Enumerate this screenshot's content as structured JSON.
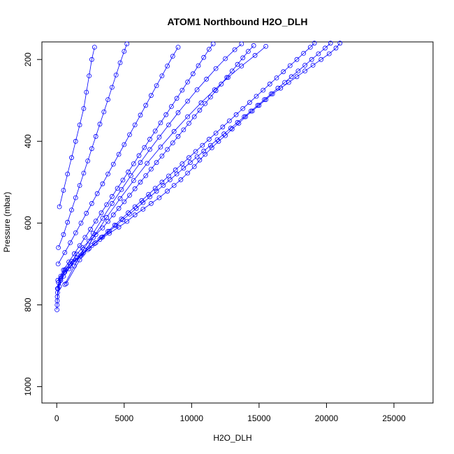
{
  "chart_data": {
    "type": "scatter",
    "title": "ATOM1 Northbound H2O_DLH",
    "xlabel": "H2O_DLH",
    "ylabel": "Pressure (mbar)",
    "xlim": [
      -1100,
      27900
    ],
    "ylim": [
      1040,
      157
    ],
    "y_reversed": true,
    "x_ticks": [
      0,
      5000,
      10000,
      15000,
      20000,
      25000
    ],
    "y_ticks": [
      200,
      400,
      600,
      800,
      1000
    ],
    "grid": false,
    "legend": "none",
    "marker": "open-circle",
    "connected": true,
    "color": "#0000ff",
    "series": [
      {
        "values": [
          [
            20,
            812
          ],
          [
            40,
            790
          ],
          [
            60,
            770
          ],
          [
            120,
            745
          ],
          [
            300,
            730
          ],
          [
            600,
            715
          ],
          [
            1000,
            700
          ],
          [
            1500,
            685
          ],
          [
            2000,
            672
          ],
          [
            2600,
            655
          ],
          [
            3200,
            640
          ],
          [
            3900,
            625
          ],
          [
            4600,
            610
          ],
          [
            5200,
            596
          ],
          [
            5800,
            580
          ],
          [
            6400,
            566
          ],
          [
            7000,
            552
          ],
          [
            7600,
            538
          ],
          [
            8200,
            522
          ],
          [
            8700,
            508
          ],
          [
            9200,
            494
          ],
          [
            9700,
            478
          ],
          [
            10200,
            462
          ],
          [
            10600,
            446
          ],
          [
            11000,
            432
          ],
          [
            11500,
            416
          ],
          [
            12000,
            400
          ],
          [
            12500,
            386
          ],
          [
            13000,
            370
          ],
          [
            13500,
            356
          ],
          [
            14000,
            340
          ],
          [
            14500,
            326
          ],
          [
            15000,
            312
          ],
          [
            15500,
            298
          ],
          [
            16000,
            284
          ],
          [
            16600,
            270
          ],
          [
            17200,
            256
          ],
          [
            17800,
            242
          ],
          [
            18400,
            228
          ],
          [
            19000,
            214
          ],
          [
            19600,
            200
          ],
          [
            20200,
            186
          ],
          [
            20700,
            172
          ],
          [
            21000,
            160
          ]
        ]
      },
      {
        "values": [
          [
            30,
            800
          ],
          [
            100,
            760
          ],
          [
            300,
            740
          ],
          [
            600,
            720
          ],
          [
            1000,
            705
          ],
          [
            1400,
            690
          ],
          [
            1900,
            676
          ],
          [
            2400,
            662
          ],
          [
            2900,
            648
          ],
          [
            3400,
            634
          ],
          [
            3900,
            620
          ],
          [
            4400,
            606
          ],
          [
            4900,
            592
          ],
          [
            5400,
            578
          ],
          [
            5900,
            564
          ],
          [
            6400,
            550
          ],
          [
            6900,
            536
          ],
          [
            7400,
            522
          ],
          [
            7900,
            508
          ],
          [
            8400,
            494
          ],
          [
            8900,
            480
          ],
          [
            9400,
            466
          ],
          [
            9900,
            452
          ],
          [
            10400,
            438
          ],
          [
            10900,
            424
          ],
          [
            11400,
            410
          ],
          [
            11900,
            396
          ],
          [
            12400,
            382
          ],
          [
            12900,
            368
          ],
          [
            13400,
            354
          ],
          [
            13900,
            340
          ],
          [
            14400,
            326
          ],
          [
            14900,
            312
          ],
          [
            15400,
            298
          ],
          [
            15900,
            284
          ],
          [
            16400,
            270
          ],
          [
            16900,
            256
          ],
          [
            17400,
            242
          ],
          [
            17900,
            228
          ],
          [
            18400,
            214
          ],
          [
            18900,
            200
          ],
          [
            19400,
            186
          ],
          [
            19900,
            172
          ],
          [
            20300,
            160
          ]
        ]
      },
      {
        "values": [
          [
            40,
            780
          ],
          [
            200,
            755
          ],
          [
            500,
            730
          ],
          [
            900,
            712
          ],
          [
            1300,
            695
          ],
          [
            1800,
            680
          ],
          [
            2300,
            665
          ],
          [
            2800,
            650
          ],
          [
            3300,
            635
          ],
          [
            3800,
            620
          ],
          [
            4300,
            605
          ],
          [
            4800,
            590
          ],
          [
            5300,
            575
          ],
          [
            5800,
            560
          ],
          [
            6300,
            545
          ],
          [
            6800,
            530
          ],
          [
            7300,
            515
          ],
          [
            7800,
            500
          ],
          [
            8300,
            485
          ],
          [
            8800,
            470
          ],
          [
            9300,
            455
          ],
          [
            9800,
            440
          ],
          [
            10300,
            425
          ],
          [
            10800,
            410
          ],
          [
            11300,
            395
          ],
          [
            11800,
            380
          ],
          [
            12300,
            365
          ],
          [
            12800,
            350
          ],
          [
            13300,
            335
          ],
          [
            13800,
            320
          ],
          [
            14300,
            305
          ],
          [
            14800,
            290
          ],
          [
            15300,
            275
          ],
          [
            15800,
            260
          ],
          [
            16300,
            245
          ],
          [
            16800,
            230
          ],
          [
            17300,
            215
          ],
          [
            17800,
            200
          ],
          [
            18300,
            185
          ],
          [
            18800,
            170
          ],
          [
            19100,
            160
          ]
        ]
      },
      {
        "values": [
          [
            60,
            760
          ],
          [
            300,
            735
          ],
          [
            700,
            712
          ],
          [
            1100,
            694
          ],
          [
            1500,
            676
          ],
          [
            1900,
            660
          ],
          [
            2400,
            644
          ],
          [
            2900,
            628
          ],
          [
            3400,
            612
          ],
          [
            3800,
            596
          ],
          [
            4200,
            580
          ],
          [
            4600,
            564
          ],
          [
            5000,
            548
          ],
          [
            5400,
            532
          ],
          [
            5800,
            516
          ],
          [
            6200,
            500
          ],
          [
            6600,
            484
          ],
          [
            7000,
            468
          ],
          [
            7400,
            452
          ],
          [
            7800,
            436
          ],
          [
            8200,
            420
          ],
          [
            8600,
            404
          ],
          [
            9000,
            388
          ],
          [
            9400,
            372
          ],
          [
            9800,
            356
          ],
          [
            10200,
            340
          ],
          [
            10600,
            324
          ],
          [
            11000,
            308
          ],
          [
            11400,
            292
          ],
          [
            11800,
            276
          ],
          [
            12200,
            260
          ],
          [
            12600,
            244
          ],
          [
            13000,
            228
          ],
          [
            13400,
            212
          ],
          [
            13800,
            196
          ],
          [
            14200,
            180
          ],
          [
            14600,
            166
          ]
        ]
      },
      {
        "values": [
          [
            80,
            740
          ],
          [
            500,
            715
          ],
          [
            900,
            695
          ],
          [
            1300,
            675
          ],
          [
            1700,
            655
          ],
          [
            2100,
            635
          ],
          [
            2500,
            615
          ],
          [
            2900,
            595
          ],
          [
            3300,
            575
          ],
          [
            3700,
            555
          ],
          [
            4100,
            535
          ],
          [
            4500,
            515
          ],
          [
            4900,
            495
          ],
          [
            5300,
            475
          ],
          [
            5700,
            455
          ],
          [
            6100,
            435
          ],
          [
            6500,
            415
          ],
          [
            6900,
            395
          ],
          [
            7300,
            375
          ],
          [
            7700,
            355
          ],
          [
            8100,
            335
          ],
          [
            8500,
            315
          ],
          [
            8900,
            295
          ],
          [
            9300,
            275
          ],
          [
            9700,
            255
          ],
          [
            10100,
            235
          ],
          [
            10500,
            215
          ],
          [
            10900,
            195
          ],
          [
            11300,
            175
          ],
          [
            11600,
            162
          ]
        ]
      },
      {
        "values": [
          [
            100,
            700
          ],
          [
            600,
            672
          ],
          [
            1000,
            648
          ],
          [
            1400,
            624
          ],
          [
            1800,
            600
          ],
          [
            2200,
            576
          ],
          [
            2600,
            552
          ],
          [
            3000,
            528
          ],
          [
            3400,
            504
          ],
          [
            3800,
            480
          ],
          [
            4200,
            456
          ],
          [
            4600,
            432
          ],
          [
            5000,
            408
          ],
          [
            5400,
            384
          ],
          [
            5800,
            360
          ],
          [
            6200,
            336
          ],
          [
            6600,
            312
          ],
          [
            7000,
            288
          ],
          [
            7400,
            264
          ],
          [
            7800,
            240
          ],
          [
            8200,
            216
          ],
          [
            8600,
            192
          ],
          [
            9000,
            170
          ]
        ]
      },
      {
        "values": [
          [
            120,
            660
          ],
          [
            500,
            628
          ],
          [
            800,
            598
          ],
          [
            1100,
            568
          ],
          [
            1400,
            538
          ],
          [
            1700,
            508
          ],
          [
            2000,
            478
          ],
          [
            2300,
            448
          ],
          [
            2600,
            418
          ],
          [
            2900,
            388
          ],
          [
            3200,
            358
          ],
          [
            3500,
            328
          ],
          [
            3800,
            298
          ],
          [
            4100,
            268
          ],
          [
            4400,
            238
          ],
          [
            4700,
            208
          ],
          [
            5000,
            180
          ],
          [
            5200,
            162
          ]
        ]
      },
      {
        "values": [
          [
            200,
            560
          ],
          [
            500,
            520
          ],
          [
            800,
            480
          ],
          [
            1100,
            440
          ],
          [
            1400,
            400
          ],
          [
            1700,
            360
          ],
          [
            2000,
            320
          ],
          [
            2200,
            280
          ],
          [
            2400,
            240
          ],
          [
            2600,
            200
          ],
          [
            2800,
            170
          ]
        ]
      },
      {
        "values": [
          [
            600,
            750
          ],
          [
            1300,
            705
          ],
          [
            2000,
            665
          ],
          [
            2700,
            625
          ],
          [
            3400,
            588
          ],
          [
            4100,
            552
          ],
          [
            4800,
            518
          ],
          [
            5500,
            484
          ],
          [
            6200,
            452
          ],
          [
            6900,
            420
          ],
          [
            7600,
            390
          ],
          [
            8300,
            360
          ],
          [
            9000,
            330
          ],
          [
            9700,
            302
          ],
          [
            10400,
            274
          ],
          [
            11100,
            248
          ],
          [
            11800,
            222
          ],
          [
            12500,
            198
          ],
          [
            13200,
            176
          ],
          [
            13700,
            162
          ]
        ]
      },
      {
        "values": [
          [
            700,
            748
          ],
          [
            1700,
            690
          ],
          [
            2700,
            636
          ],
          [
            3700,
            586
          ],
          [
            4700,
            540
          ],
          [
            5700,
            496
          ],
          [
            6700,
            454
          ],
          [
            7700,
            414
          ],
          [
            8700,
            376
          ],
          [
            9700,
            340
          ],
          [
            10700,
            306
          ],
          [
            11700,
            274
          ],
          [
            12700,
            244
          ],
          [
            13700,
            216
          ],
          [
            14700,
            190
          ],
          [
            15500,
            168
          ]
        ]
      }
    ]
  }
}
